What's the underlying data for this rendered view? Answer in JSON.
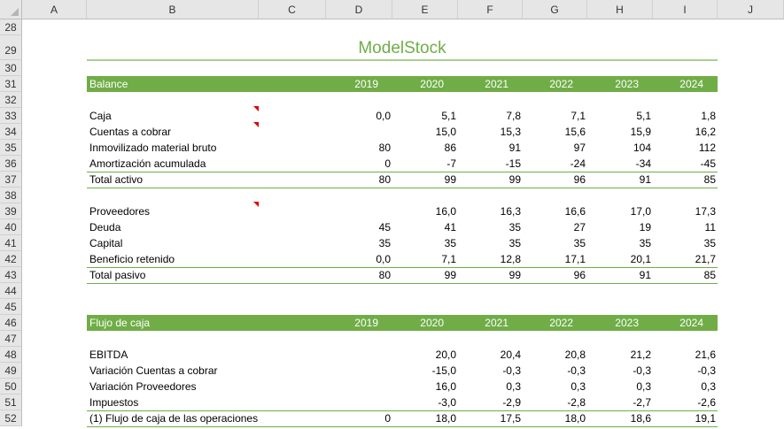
{
  "columns": [
    "A",
    "B",
    "C",
    "D",
    "E",
    "F",
    "G",
    "H",
    "I",
    "J"
  ],
  "row_numbers": [
    28,
    29,
    30,
    31,
    32,
    33,
    34,
    35,
    36,
    37,
    38,
    39,
    40,
    41,
    42,
    43,
    44,
    45,
    46,
    47,
    48,
    49,
    50,
    51,
    52
  ],
  "title": "ModelStock",
  "colors": {
    "accent": "#70ad47",
    "title_line": "#a9d08e",
    "comment": "#e00000"
  },
  "balance": {
    "header": "Balance",
    "years": [
      "2019",
      "2020",
      "2021",
      "2022",
      "2023",
      "2024"
    ],
    "rows": [
      {
        "label": "Caja",
        "values": [
          "0,0",
          "5,1",
          "7,8",
          "7,1",
          "5,1",
          "1,8"
        ],
        "comment": true
      },
      {
        "label": "Cuentas a cobrar",
        "values": [
          "",
          "15,0",
          "15,3",
          "15,6",
          "15,9",
          "16,2"
        ],
        "comment": true
      },
      {
        "label": "Inmovilizado material bruto",
        "values": [
          "80",
          "86",
          "91",
          "97",
          "104",
          "112"
        ]
      },
      {
        "label": "Amortización acumulada",
        "values": [
          "0",
          "-7",
          "-15",
          "-24",
          "-34",
          "-45"
        ]
      },
      {
        "label": "Total activo",
        "values": [
          "80",
          "99",
          "99",
          "96",
          "91",
          "85"
        ],
        "total": true
      },
      {
        "label": "Proveedores",
        "values": [
          "",
          "16,0",
          "16,3",
          "16,6",
          "17,0",
          "17,3"
        ],
        "comment": true,
        "gap": true
      },
      {
        "label": "Deuda",
        "values": [
          "45",
          "41",
          "35",
          "27",
          "19",
          "11"
        ]
      },
      {
        "label": "Capital",
        "values": [
          "35",
          "35",
          "35",
          "35",
          "35",
          "35"
        ]
      },
      {
        "label": "Beneficio retenido",
        "values": [
          "0,0",
          "7,1",
          "12,8",
          "17,1",
          "20,1",
          "21,7"
        ]
      },
      {
        "label": "Total pasivo",
        "values": [
          "80",
          "99",
          "99",
          "96",
          "91",
          "85"
        ],
        "total": true
      }
    ]
  },
  "cashflow": {
    "header": "Flujo de caja",
    "years": [
      "2019",
      "2020",
      "2021",
      "2022",
      "2023",
      "2024"
    ],
    "rows": [
      {
        "label": "EBITDA",
        "values": [
          "",
          "20,0",
          "20,4",
          "20,8",
          "21,2",
          "21,6"
        ]
      },
      {
        "label": "Variación Cuentas a cobrar",
        "values": [
          "",
          "-15,0",
          "-0,3",
          "-0,3",
          "-0,3",
          "-0,3"
        ]
      },
      {
        "label": "Variación Proveedores",
        "values": [
          "",
          "16,0",
          "0,3",
          "0,3",
          "0,3",
          "0,3"
        ]
      },
      {
        "label": "Impuestos",
        "values": [
          "",
          "-3,0",
          "-2,9",
          "-2,8",
          "-2,7",
          "-2,6"
        ]
      },
      {
        "label": "(1) Flujo de caja de las operaciones",
        "values": [
          "0",
          "18,0",
          "17,5",
          "18,0",
          "18,6",
          "19,1"
        ],
        "total": true
      }
    ]
  }
}
